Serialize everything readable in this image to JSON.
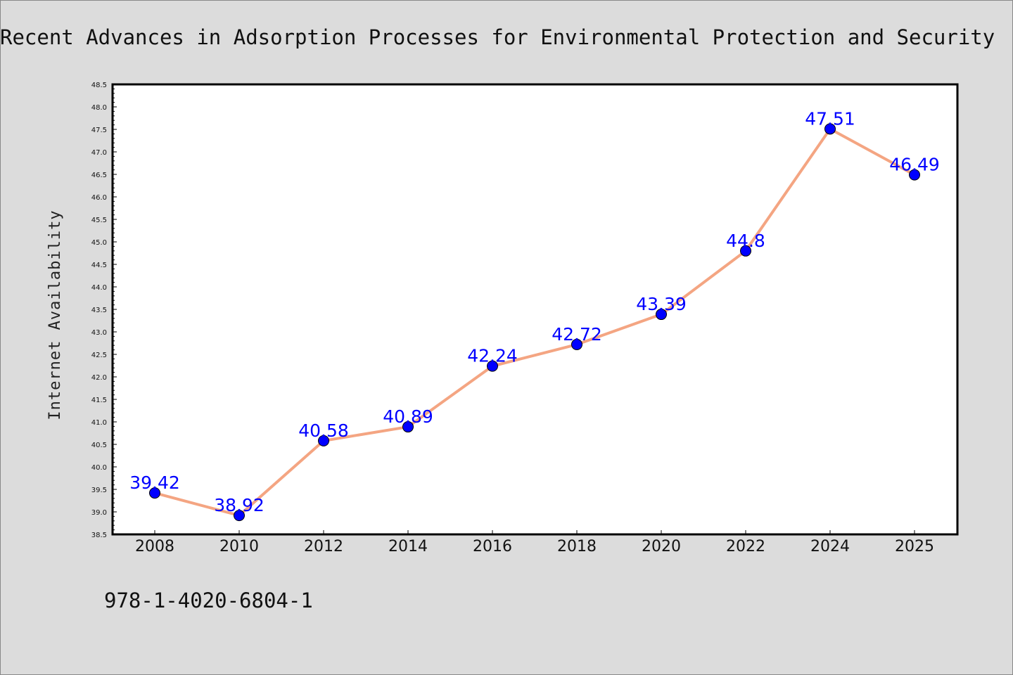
{
  "chart_data": {
    "type": "line",
    "title": "Recent Advances in Adsorption Processes for Environmental Protection and Security",
    "xlabel": "",
    "ylabel": "Internet Availability",
    "categories": [
      "2008",
      "2010",
      "2012",
      "2014",
      "2016",
      "2018",
      "2020",
      "2022",
      "2024",
      "2025"
    ],
    "series": [
      {
        "values": [
          39.42,
          38.92,
          40.58,
          40.89,
          42.24,
          42.72,
          43.39,
          44.8,
          47.51,
          46.49
        ],
        "line_color": "#f4a582",
        "marker_color": "#0000ff"
      }
    ],
    "data_labels": [
      "39.42",
      "38.92",
      "40.58",
      "40.89",
      "42.24",
      "42.72",
      "43.39",
      "44.8",
      "47.51",
      "46.49"
    ],
    "ylim": [
      38.5,
      48.5
    ],
    "yticks": [
      "38.5",
      "39.0",
      "39.5",
      "40.0",
      "40.5",
      "41.0",
      "41.5",
      "42.0",
      "42.5",
      "43.0",
      "43.5",
      "44.0",
      "44.5",
      "45.0",
      "45.5",
      "46.0",
      "46.5",
      "47.0",
      "47.5",
      "48.0",
      "48.5"
    ],
    "grid": false,
    "legend": "none"
  },
  "footer": {
    "isbn": "978-1-4020-6804-1"
  },
  "colors": {
    "background": "#dcdcdc",
    "plot_area": "#ffffff",
    "axis": "#000000",
    "line": "#f4a582",
    "marker": "#0000ff",
    "data_label": "#0000ff"
  }
}
